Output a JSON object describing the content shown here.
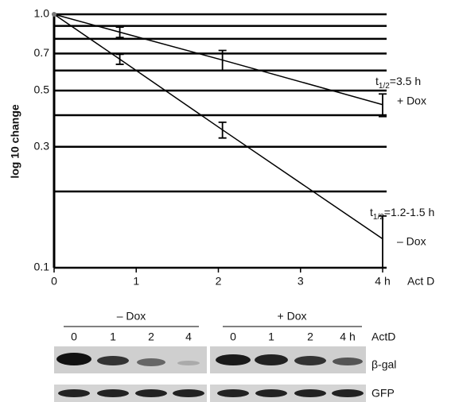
{
  "chart_data": {
    "type": "line",
    "y_label": "log 10 change",
    "x_label": "Act D",
    "log_y": true,
    "ylim": [
      0.1,
      1
    ],
    "yticks": [
      0.1,
      0.3,
      0.5,
      0.7,
      {
        "value": 1,
        "label": "1.0"
      }
    ],
    "grid_lines": [
      0.2,
      0.4,
      0.6,
      0.8,
      0.9
    ],
    "xlim": [
      0,
      4
    ],
    "xticks": [
      0,
      1,
      2,
      3,
      {
        "value": 4,
        "label": "4 h"
      }
    ],
    "series": [
      {
        "name": "+ Dox",
        "color": "#000000",
        "x": [
          0,
          0.8,
          2.05,
          4
        ],
        "values": [
          1,
          0.85,
          0.66,
          0.44
        ],
        "errors": [
          null,
          0.04,
          0.06,
          0.045
        ]
      },
      {
        "name": "– Dox",
        "color": "#000000",
        "x": [
          0,
          0.8,
          2.05,
          4
        ],
        "values": [
          1,
          0.665,
          0.35,
          0.13
        ],
        "errors": [
          null,
          0.03,
          0.025,
          0.03
        ]
      }
    ],
    "annotations": [
      {
        "text": "t",
        "subscript": "1/2",
        "suffix": "=3.5 h"
      },
      {
        "text": "t",
        "subscript": "1/2",
        "suffix": "=1.2-1.5 h"
      }
    ]
  },
  "blot": {
    "groups": [
      {
        "label": "– Dox",
        "lanes": [
          "0",
          "1",
          "2",
          "4"
        ]
      },
      {
        "label": "+ Dox",
        "lanes": [
          "0",
          "1",
          "2",
          "4 h"
        ]
      }
    ],
    "rows": [
      "ActD",
      "β-gal",
      "GFP"
    ]
  }
}
